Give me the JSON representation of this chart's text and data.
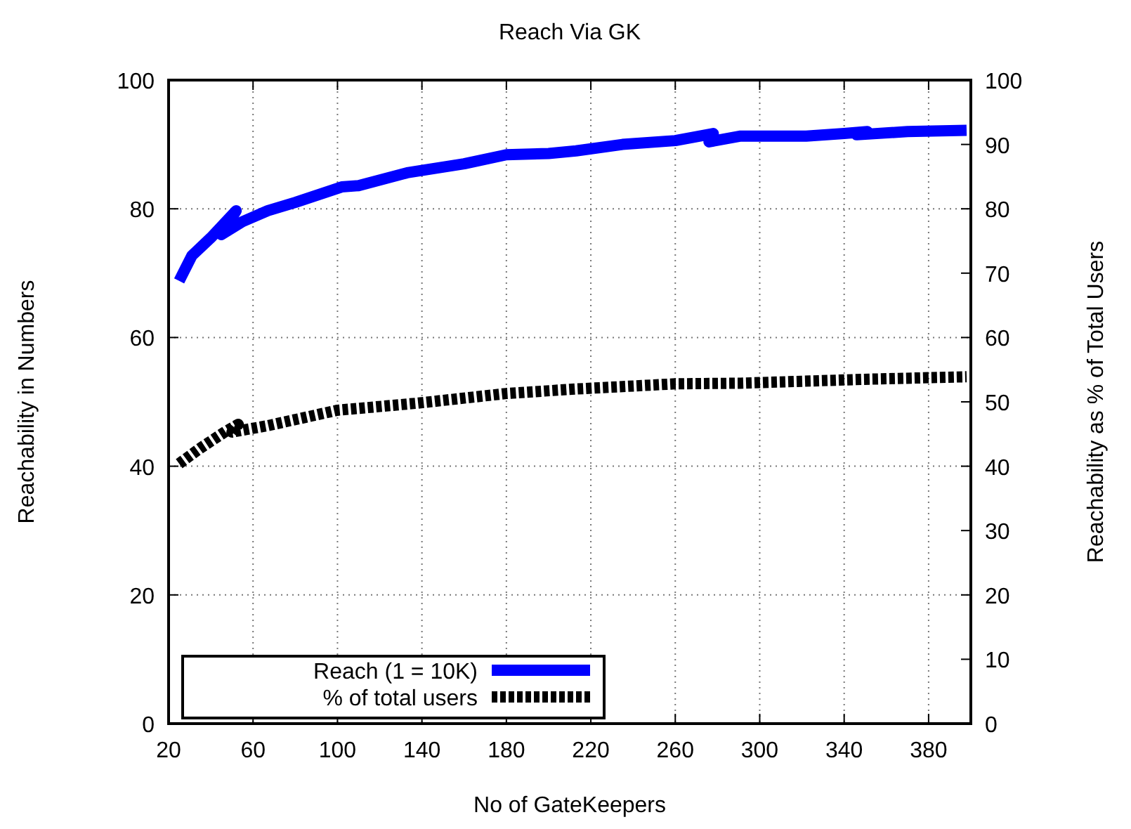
{
  "chart_data": {
    "type": "line",
    "title": "Reach Via GK",
    "xlabel": "No of GateKeepers",
    "ylabel": "Reachability in Numbers",
    "y2label": "Reachability as % of Total Users",
    "xlim": [
      20,
      400
    ],
    "xticks": [
      20,
      60,
      100,
      140,
      180,
      220,
      260,
      300,
      340,
      380
    ],
    "ylim": [
      0,
      100
    ],
    "yticks": [
      0,
      20,
      40,
      60,
      80,
      100
    ],
    "y2lim": [
      0,
      100
    ],
    "y2ticks": [
      0,
      10,
      20,
      30,
      40,
      50,
      60,
      70,
      80,
      90,
      100
    ],
    "grid": true,
    "legend": "bottom left",
    "series": [
      {
        "name": "Reach (1 = 10K)",
        "color": "#0000ff",
        "line_style": "solid",
        "x": [
          25,
          31,
          40,
          52,
          45,
          55,
          67,
          80,
          102,
          110,
          133,
          160,
          180,
          200,
          213,
          235,
          260,
          278,
          276,
          291,
          322,
          340,
          351,
          346,
          370,
          398
        ],
        "values": [
          68.8,
          72.7,
          75.5,
          79.7,
          76,
          78,
          79.7,
          81,
          83.4,
          83.6,
          85.6,
          87,
          88.4,
          88.6,
          89,
          90,
          90.6,
          91.7,
          90.4,
          91.3,
          91.3,
          91.7,
          92,
          91.5,
          92,
          92.2
        ]
      },
      {
        "name": "% of total users",
        "color": "#000000",
        "line_style": "dashed",
        "axis": "y2",
        "x": [
          25,
          35,
          47,
          53,
          50,
          67,
          100,
          138,
          180,
          213,
          260,
          291,
          349,
          398
        ],
        "values": [
          40.4,
          42.8,
          45.4,
          46.5,
          45.3,
          46.3,
          48.7,
          49.8,
          51.3,
          52,
          52.8,
          52.9,
          53.5,
          53.9
        ]
      }
    ]
  }
}
